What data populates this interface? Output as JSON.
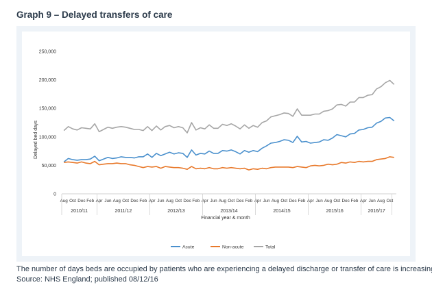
{
  "heading": "Graph 9 – Delayed transfers of care",
  "caption": {
    "line1": "The number of days beds are occupied by patients who are experiencing a delayed discharge or transfer of care is increasing.",
    "line2": "Source: NHS England; published 08/12/16"
  },
  "colors": {
    "acute": "#4a90cd",
    "nonacute": "#e8792b",
    "total": "#a6a6a6",
    "panel": "#eef3f8",
    "chart_bg": "#ffffff"
  },
  "chart_data": {
    "type": "line",
    "title": "",
    "ylabel": "Delayed bed days",
    "xlabel": "Financial year & month",
    "ylim": [
      0,
      250000
    ],
    "yticks": [
      0,
      50000,
      100000,
      150000,
      200000,
      250000
    ],
    "ytick_labels": [
      "0",
      "50,000",
      "100,000",
      "150,000",
      "200,000",
      "250,000"
    ],
    "grid": "none",
    "legend": "bottom",
    "x_start": "2010-08",
    "month_labels": [
      "Aug",
      "Oct",
      "Dec",
      "Feb",
      "Apr",
      "Jun",
      "Aug",
      "Oct",
      "Dec",
      "Feb",
      "Apr",
      "Jun",
      "Aug",
      "Oct",
      "Dec",
      "Feb",
      "Apr",
      "Jun",
      "Aug",
      "Oct",
      "Dec",
      "Feb",
      "Apr",
      "Jun",
      "Aug",
      "Oct",
      "Dec",
      "Feb",
      "Apr",
      "Jun",
      "Aug",
      "Oct",
      "Dec",
      "Feb",
      "Apr",
      "Jun",
      "Aug",
      "Oct"
    ],
    "years": [
      {
        "label": "2010/11",
        "start": "2010-08",
        "end": "2011-03"
      },
      {
        "label": "2011/12",
        "start": "2011-04",
        "end": "2012-03"
      },
      {
        "label": "2012/13",
        "start": "2012-04",
        "end": "2013-03"
      },
      {
        "label": "2013/14",
        "start": "2013-04",
        "end": "2014-03"
      },
      {
        "label": "2014/15",
        "start": "2014-04",
        "end": "2015-03"
      },
      {
        "label": "2015/16",
        "start": "2015-04",
        "end": "2016-03"
      },
      {
        "label": "2016/17",
        "start": "2016-04",
        "end": "2016-10"
      }
    ],
    "series": [
      {
        "name": "Acute",
        "color": "#4a90cd",
        "values": [
          56000,
          62000,
          60000,
          59000,
          60000,
          60000,
          61000,
          66000,
          58000,
          61000,
          64000,
          62000,
          63000,
          65000,
          64000,
          64000,
          63000,
          65000,
          65000,
          70000,
          64000,
          71000,
          67000,
          70000,
          73000,
          70000,
          72000,
          71000,
          64000,
          77000,
          68000,
          71000,
          70000,
          75000,
          71000,
          71000,
          76000,
          75000,
          77000,
          74000,
          70000,
          76000,
          73000,
          76000,
          74000,
          80000,
          84000,
          89000,
          90000,
          92000,
          95000,
          94000,
          90000,
          101000,
          91000,
          92000,
          89000,
          90000,
          91000,
          95000,
          94000,
          98000,
          104000,
          102000,
          100000,
          105000,
          106000,
          112000,
          113000,
          116000,
          117000,
          124000,
          127000,
          133000,
          134000,
          128000
        ]
      },
      {
        "name": "Non-acute",
        "color": "#e8792b",
        "values": [
          55000,
          56000,
          55000,
          54000,
          56000,
          54000,
          53000,
          57000,
          51000,
          52000,
          53000,
          53000,
          54000,
          53000,
          53000,
          51000,
          50000,
          48000,
          46000,
          48000,
          47000,
          48000,
          45000,
          48000,
          47000,
          46000,
          46000,
          45000,
          43000,
          48000,
          44000,
          45000,
          44000,
          46000,
          44000,
          44000,
          46000,
          45000,
          46000,
          45000,
          44000,
          45000,
          42000,
          44000,
          43000,
          45000,
          44000,
          46000,
          47000,
          47000,
          47000,
          47000,
          46000,
          48000,
          47000,
          46000,
          49000,
          50000,
          49000,
          50000,
          52000,
          51000,
          52000,
          55000,
          54000,
          56000,
          55000,
          57000,
          56000,
          57000,
          57000,
          60000,
          61000,
          62000,
          65000,
          64000
        ]
      },
      {
        "name": "Total",
        "color": "#a6a6a6",
        "values": [
          111000,
          118000,
          114000,
          112000,
          116000,
          115000,
          114000,
          123000,
          109000,
          113000,
          117000,
          115000,
          117000,
          118000,
          117000,
          115000,
          113000,
          113000,
          111000,
          118000,
          111000,
          119000,
          112000,
          118000,
          120000,
          116000,
          118000,
          116000,
          107000,
          125000,
          112000,
          116000,
          114000,
          121000,
          115000,
          115000,
          122000,
          120000,
          123000,
          119000,
          114000,
          121000,
          115000,
          120000,
          117000,
          125000,
          128000,
          135000,
          137000,
          139000,
          142000,
          141000,
          136000,
          149000,
          138000,
          138000,
          138000,
          140000,
          140000,
          145000,
          146000,
          149000,
          156000,
          157000,
          154000,
          161000,
          161000,
          169000,
          169000,
          173000,
          174000,
          184000,
          188000,
          195000,
          199000,
          192000
        ]
      }
    ]
  }
}
